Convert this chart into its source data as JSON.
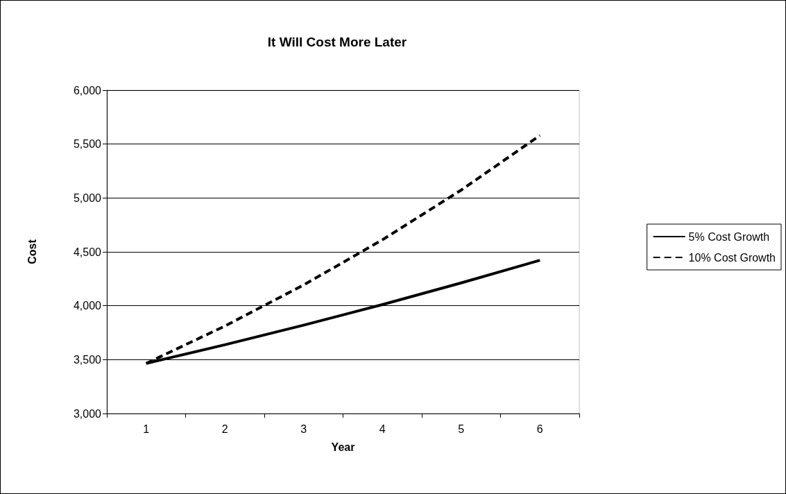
{
  "chart_data": {
    "type": "line",
    "title": "It Will Cost More Later",
    "xlabel": "Year",
    "ylabel": "Cost",
    "categories": [
      "1",
      "2",
      "3",
      "4",
      "5",
      "6"
    ],
    "series": [
      {
        "name": "5% Cost Growth",
        "color": "#000000",
        "line_style": "solid",
        "values": [
          3465,
          3638,
          3820,
          4011,
          4212,
          4422
        ]
      },
      {
        "name": "10% Cost Growth",
        "color": "#000000",
        "line_style": "dashed",
        "values": [
          3465,
          3812,
          4193,
          4612,
          5073,
          5580
        ]
      }
    ],
    "ylim": [
      3000,
      6000
    ],
    "yticks": [
      {
        "value": 3000,
        "label": "3,000"
      },
      {
        "value": 3500,
        "label": "3,500"
      },
      {
        "value": 4000,
        "label": "4,000"
      },
      {
        "value": 4500,
        "label": "4,500"
      },
      {
        "value": 5000,
        "label": "5,000"
      },
      {
        "value": 5500,
        "label": "5,500"
      },
      {
        "value": 6000,
        "label": "6,000"
      }
    ],
    "grid": "y",
    "legend": "right",
    "marker": "none"
  }
}
